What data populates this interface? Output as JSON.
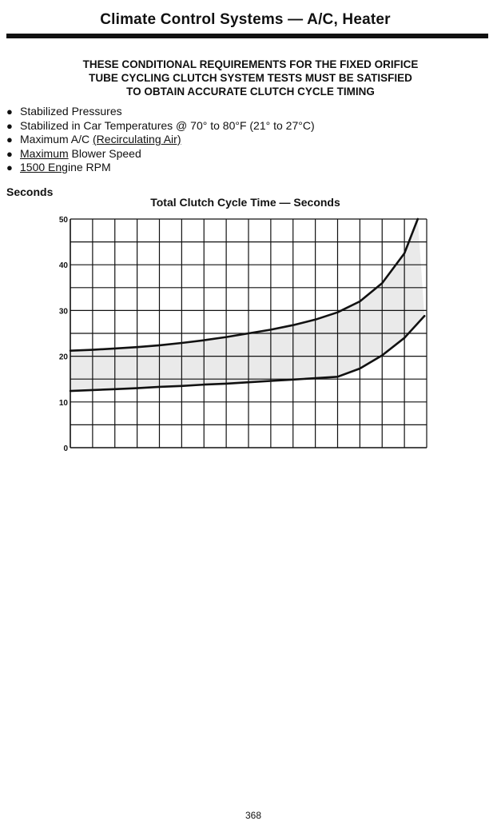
{
  "header": {
    "title": "Climate Control Systems — A/C, Heater"
  },
  "notice": {
    "lines": [
      "THESE CONDITIONAL REQUIREMENTS FOR THE FIXED ORIFICE",
      "TUBE CYCLING CLUTCH SYSTEM TESTS MUST BE SATISFIED",
      "TO OBTAIN ACCURATE CLUTCH CYCLE TIMING"
    ]
  },
  "conditions": [
    {
      "text": "Stabilized Pressures"
    },
    {
      "text": "Stabilized in Car Temperatures @ 70° to 80°F (21° to 27°C)"
    },
    {
      "pre": "Maximum A/C ",
      "underlined": "(Recirculating Air)",
      "post": ""
    },
    {
      "pre": "",
      "underlined": "Maximum",
      "post": " Blower Speed"
    },
    {
      "pre": "",
      "underlined": "1500 Eng",
      "post": "ine RPM"
    }
  ],
  "chart_data": {
    "type": "line",
    "title": "Total Clutch Cycle Time — Seconds",
    "ylabel": "Seconds",
    "xlabel": "",
    "ylim": [
      0,
      50
    ],
    "yticks": [
      0,
      10,
      20,
      30,
      40,
      50
    ],
    "x_divisions": 16,
    "grid": true,
    "series": [
      {
        "values": [
          [
            0,
            21.2
          ],
          [
            1,
            21.4
          ],
          [
            2,
            21.7
          ],
          [
            3,
            22.0
          ],
          [
            4,
            22.4
          ],
          [
            5,
            22.9
          ],
          [
            6,
            23.5
          ],
          [
            7,
            24.2
          ],
          [
            8,
            25.0
          ],
          [
            9,
            25.8
          ],
          [
            10,
            26.8
          ],
          [
            11,
            28.0
          ],
          [
            12,
            29.6
          ],
          [
            13,
            32.0
          ],
          [
            14,
            36.0
          ],
          [
            15,
            42.5
          ],
          [
            15.6,
            50
          ]
        ]
      },
      {
        "values": [
          [
            0,
            12.4
          ],
          [
            1,
            12.6
          ],
          [
            2,
            12.8
          ],
          [
            3,
            13.0
          ],
          [
            4,
            13.3
          ],
          [
            5,
            13.5
          ],
          [
            6,
            13.8
          ],
          [
            7,
            14.0
          ],
          [
            8,
            14.3
          ],
          [
            9,
            14.6
          ],
          [
            10,
            14.9
          ],
          [
            11,
            15.2
          ],
          [
            12,
            15.5
          ],
          [
            13,
            17.3
          ],
          [
            14,
            20.2
          ],
          [
            15,
            24.0
          ],
          [
            15.9,
            28.8
          ]
        ]
      }
    ]
  },
  "footer": {
    "page_number": "368"
  }
}
